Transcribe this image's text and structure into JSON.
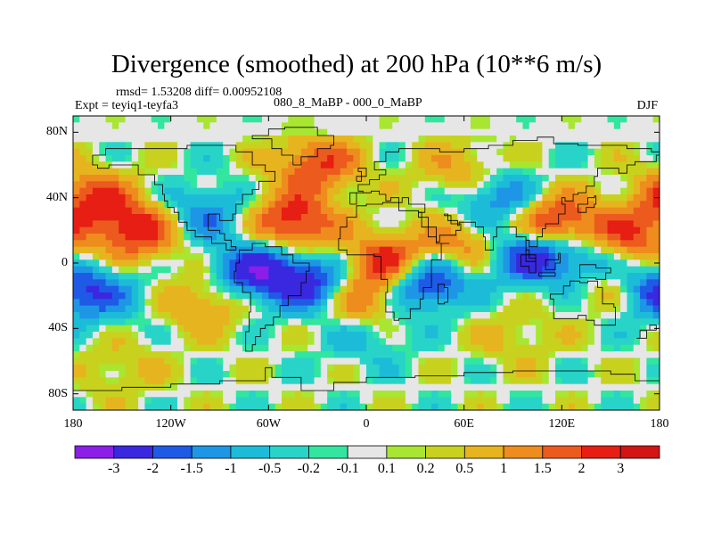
{
  "header": {
    "title": "Divergence (smoothed) at 200 hPa (10**6 m/s)",
    "stats": "rmsd= 1.53208 diff= 0.00952108",
    "experiment": "Expt = teyiq1-teyfa3",
    "comparison": "080_8_MaBP - 000_0_MaBP",
    "season": "DJF"
  },
  "chart_data": {
    "type": "heatmap",
    "title": "Divergence (smoothed) at 200 hPa (10**6 m/s)",
    "xlabel": "",
    "ylabel": "",
    "xlim": [
      -180,
      180
    ],
    "ylim": [
      -90,
      90
    ],
    "x_ticks": [
      {
        "label": "180",
        "value": -180
      },
      {
        "label": "120W",
        "value": -120
      },
      {
        "label": "60W",
        "value": -60
      },
      {
        "label": "0",
        "value": 0
      },
      {
        "label": "60E",
        "value": 60
      },
      {
        "label": "120E",
        "value": 120
      },
      {
        "label": "180",
        "value": 180
      }
    ],
    "y_ticks": [
      {
        "label": "80N",
        "value": 80
      },
      {
        "label": "40N",
        "value": 40
      },
      {
        "label": "0",
        "value": 0
      },
      {
        "label": "40S",
        "value": -40
      },
      {
        "label": "80S",
        "value": -80
      }
    ],
    "colorbar": {
      "levels": [
        "-3",
        "-2",
        "-1.5",
        "-1",
        "-0.5",
        "-0.2",
        "-0.1",
        "0.1",
        "0.2",
        "0.5",
        "1",
        "1.5",
        "2",
        "3"
      ],
      "colors": [
        "#8c1ee8",
        "#3a28e0",
        "#1e5ae6",
        "#1e96e6",
        "#1cbcd8",
        "#28d4c8",
        "#32e6a0",
        "#e6e6e6",
        "#a8e632",
        "#c8d21e",
        "#e6b41e",
        "#ee8c1e",
        "#ec5a1e",
        "#e61e14",
        "#d21414"
      ]
    },
    "approx_field_features": [
      {
        "lon": -25,
        "lat": -15,
        "value": -3.2
      },
      {
        "lon": 35,
        "lat": -10,
        "value": -3.0
      },
      {
        "lon": -65,
        "lat": -5,
        "value": -2.8
      },
      {
        "lon": 100,
        "lat": 5,
        "value": -2.5
      },
      {
        "lon": 80,
        "lat": 40,
        "value": -1.8
      },
      {
        "lon": 140,
        "lat": 0,
        "value": -2.0
      },
      {
        "lon": 175,
        "lat": -15,
        "value": -2.0
      },
      {
        "lon": -100,
        "lat": 30,
        "value": -1.5
      },
      {
        "lon": -160,
        "lat": -20,
        "value": -1.0
      },
      {
        "lon": -140,
        "lat": 20,
        "value": 2.5
      },
      {
        "lon": -170,
        "lat": 40,
        "value": 2.0
      },
      {
        "lon": -45,
        "lat": 25,
        "value": 2.5
      },
      {
        "lon": 15,
        "lat": 0,
        "value": 2.8
      },
      {
        "lon": -10,
        "lat": -20,
        "value": 2.8
      },
      {
        "lon": 115,
        "lat": 25,
        "value": 2.5
      },
      {
        "lon": 160,
        "lat": 15,
        "value": 2.0
      },
      {
        "lon": 60,
        "lat": 10,
        "value": 1.5
      },
      {
        "lon": 150,
        "lat": -10,
        "value": 1.8
      },
      {
        "lon": -30,
        "lat": 60,
        "value": 2.0
      },
      {
        "lon": -100,
        "lat": -25,
        "value": 1.2
      },
      {
        "lon": 60,
        "lat": 55,
        "value": 1.2
      },
      {
        "lon": 0,
        "lat": -45,
        "value": -0.7
      },
      {
        "lon": 90,
        "lat": -45,
        "value": 0.6
      },
      {
        "lon": -150,
        "lat": -65,
        "value": 0.6
      }
    ]
  }
}
